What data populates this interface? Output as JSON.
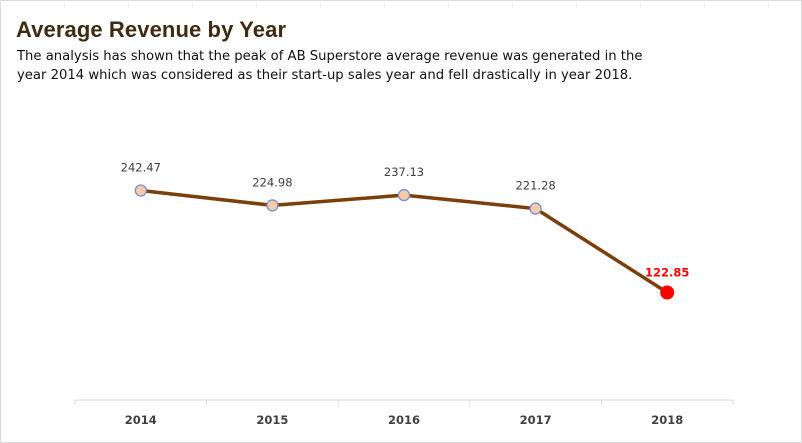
{
  "title": "Average Revenue by Year",
  "subtitle": "The analysis has shown that the peak of AB Superstore average revenue was generated in the year 2014 which was considered as their start-up sales year and fell drastically in year 2018.",
  "colors": {
    "line": "#7b3f0c",
    "marker_fill": "#f8cbad",
    "marker_stroke": "#7a8ed0",
    "highlight": "#ff0000",
    "label": "#404040",
    "axis": "#d9d9d9",
    "title": "#3f2a12"
  },
  "chart_data": {
    "type": "line",
    "categories": [
      "2014",
      "2015",
      "2016",
      "2017",
      "2018"
    ],
    "values": [
      242.47,
      224.98,
      237.13,
      221.28,
      122.85
    ],
    "data_labels": [
      "242.47",
      "224.98",
      "237.13",
      "221.28",
      "122.85"
    ],
    "highlight_index": 4,
    "grid": false,
    "legend": "none",
    "y_axis_visible": false
  }
}
